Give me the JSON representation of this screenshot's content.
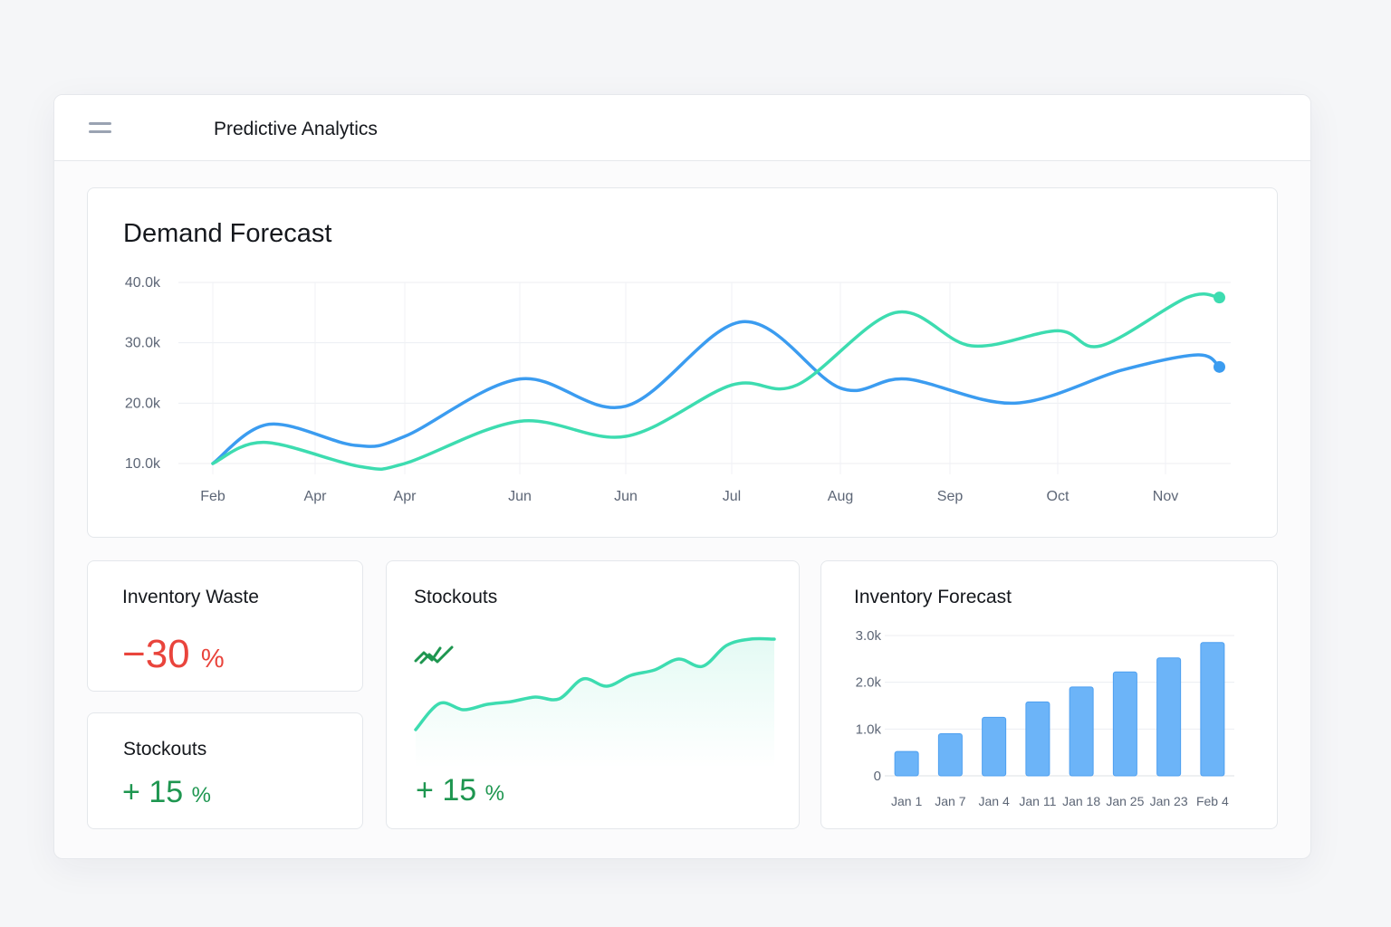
{
  "header": {
    "title": "Predictive Analytics",
    "menu_icon": "hamburger-menu-icon"
  },
  "demand": {
    "title": "Demand Forecast",
    "chart_data": {
      "type": "line",
      "title": "Demand Forecast",
      "x": [
        "Feb",
        "Apr",
        "Apr",
        "Jun",
        "Jun",
        "Jul",
        "Aug",
        "Sep",
        "Oct",
        "Nov"
      ],
      "y_ticks": [
        "10.0k",
        "20.0k",
        "30.0k",
        "40.0k"
      ],
      "ylim": [
        10000,
        40000
      ],
      "grid": true,
      "series": [
        {
          "color": "#3b9cf0",
          "points": [
            [
              0,
              10000
            ],
            [
              0.55,
              16500
            ],
            [
              1.45,
              13000
            ],
            [
              2.0,
              14500
            ],
            [
              3.0,
              24000
            ],
            [
              4.0,
              19500
            ],
            [
              5.1,
              33500
            ],
            [
              6.0,
              22500
            ],
            [
              6.6,
              24000
            ],
            [
              7.6,
              20000
            ],
            [
              8.6,
              25500
            ],
            [
              9.3,
              28000
            ],
            [
              9.5,
              26000
            ]
          ]
        },
        {
          "color": "#3ddcb0",
          "points": [
            [
              0,
              10000
            ],
            [
              0.5,
              13500
            ],
            [
              1.5,
              9500
            ],
            [
              2.0,
              10000
            ],
            [
              3.0,
              17000
            ],
            [
              4.0,
              14500
            ],
            [
              5.0,
              23000
            ],
            [
              5.6,
              23000
            ],
            [
              6.5,
              35000
            ],
            [
              7.2,
              29500
            ],
            [
              8.0,
              32000
            ],
            [
              8.4,
              29500
            ],
            [
              9.2,
              37500
            ],
            [
              9.5,
              37500
            ]
          ]
        }
      ]
    }
  },
  "waste": {
    "title": "Inventory Waste",
    "sign": "−",
    "value": "30",
    "unit": "%"
  },
  "stockouts_small": {
    "title": "Stockouts",
    "sign": "+",
    "value": "15",
    "unit": "%"
  },
  "stockouts_big": {
    "title": "Stockouts",
    "sign": "+",
    "value": "15",
    "unit": "%",
    "trend_icon": "trend-up-icon",
    "chart_data": {
      "type": "area",
      "values": [
        0.0,
        0.29,
        0.22,
        0.28,
        0.31,
        0.36,
        0.34,
        0.56,
        0.48,
        0.6,
        0.66,
        0.78,
        0.7,
        0.93,
        1.0,
        1.0
      ]
    }
  },
  "inventory": {
    "title": "Inventory Forecast",
    "chart_data": {
      "type": "bar",
      "categories": [
        "Jan 1",
        "Jan 7",
        "Jan 4",
        "Jan 11",
        "Jan 18",
        "Jan 25",
        "Jan 23",
        "Feb 4"
      ],
      "values": [
        520,
        900,
        1250,
        1580,
        1900,
        2220,
        2520,
        2850
      ],
      "y_ticks": [
        "0",
        "1.0k",
        "2.0k",
        "3.0k"
      ],
      "ylim": [
        0,
        3000
      ],
      "color": "#6cb4f8"
    }
  }
}
